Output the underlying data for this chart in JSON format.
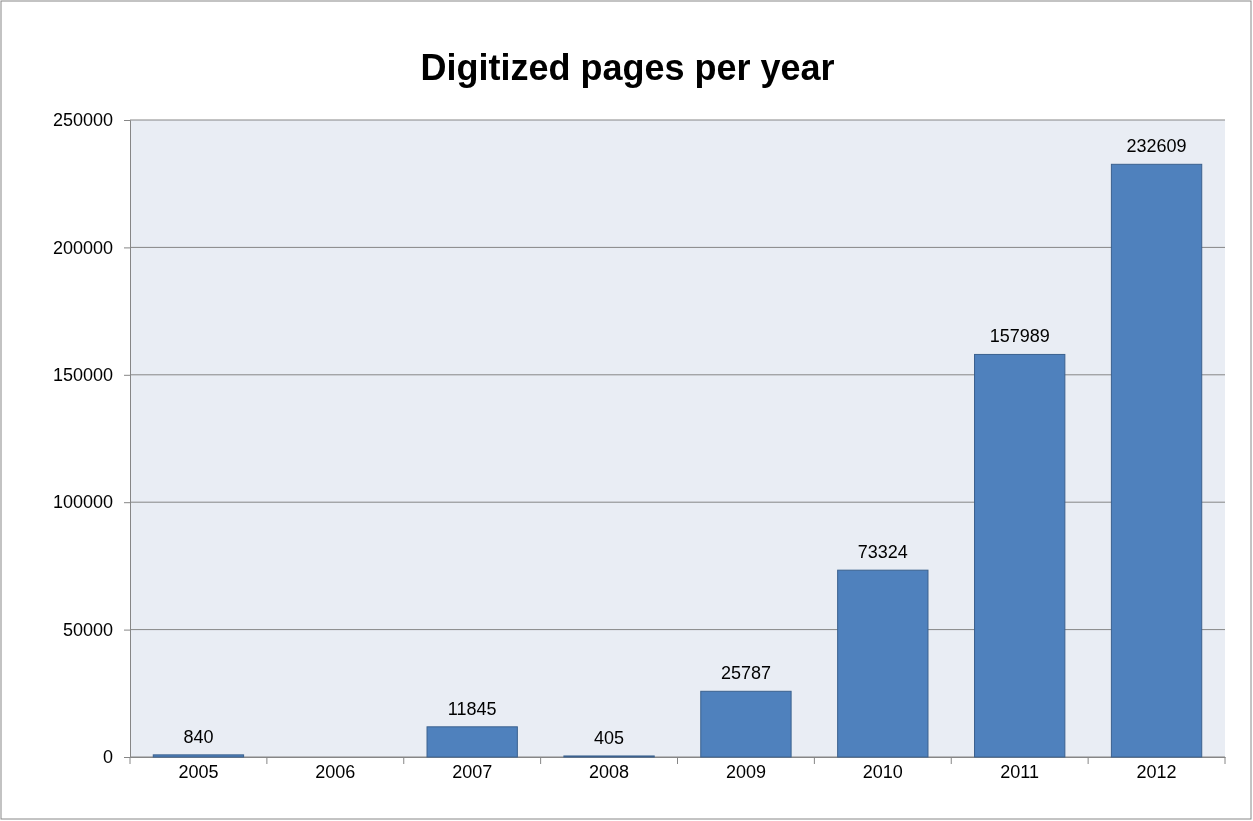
{
  "chart_data": {
    "type": "bar",
    "title": "Digitized pages per year",
    "categories": [
      "2005",
      "2006",
      "2007",
      "2008",
      "2009",
      "2010",
      "2011",
      "2012"
    ],
    "values": [
      840,
      null,
      11845,
      405,
      25787,
      73324,
      157989,
      232609
    ],
    "color": "#4f81bd",
    "ylim": [
      0,
      250000
    ],
    "yticks": [
      0,
      50000,
      100000,
      150000,
      200000,
      250000
    ],
    "grid": "y",
    "data_labels": true
  }
}
